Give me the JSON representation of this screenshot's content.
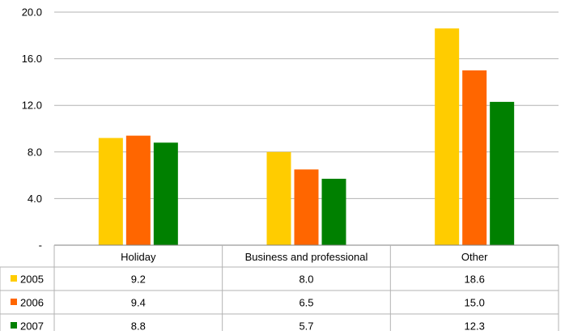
{
  "chart_data": {
    "type": "bar",
    "title": "",
    "xlabel": "",
    "ylabel": "",
    "categories": [
      "Holiday",
      "Business and professional",
      "Other"
    ],
    "series": [
      {
        "name": "2005",
        "color": "#FFCC00",
        "values": [
          9.2,
          8.0,
          18.6
        ]
      },
      {
        "name": "2006",
        "color": "#FF6600",
        "values": [
          9.4,
          6.5,
          15.0
        ]
      },
      {
        "name": "2007",
        "color": "#008000",
        "values": [
          8.8,
          5.7,
          12.3
        ]
      }
    ],
    "table_values": [
      [
        "9.2",
        "8.0",
        "18.6"
      ],
      [
        "9.4",
        "6.5",
        "15.0"
      ],
      [
        "8.8",
        "5.7",
        "12.3"
      ]
    ],
    "ylim": [
      0,
      20
    ],
    "yticks": [
      0,
      4,
      8,
      12,
      16,
      20
    ],
    "ytick_labels": [
      "-",
      "4.0",
      "8.0",
      "12.0",
      "16.0",
      "20.0"
    ],
    "grid": true,
    "legend": "in data table, left"
  }
}
